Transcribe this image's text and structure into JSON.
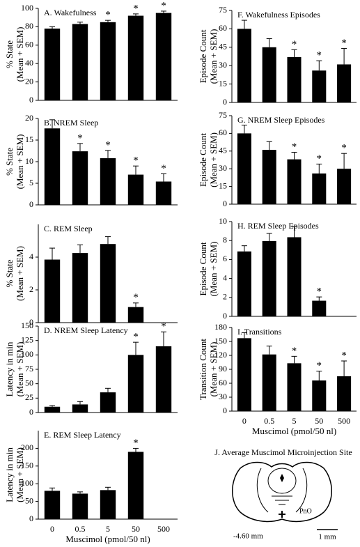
{
  "chart_data": [
    {
      "type": "bar",
      "title": "A. Wakefulness",
      "y_label": [
        "% State",
        "(Mean + SEM)"
      ],
      "categories": [
        "0",
        "0.5",
        "5",
        "50",
        "500"
      ],
      "values": [
        78,
        83,
        85,
        92,
        95
      ],
      "errors": [
        2,
        2,
        2,
        2,
        2
      ],
      "significant": [
        false,
        false,
        true,
        true,
        true
      ],
      "marker": "*",
      "color": "#000000",
      "ylim": [
        0,
        100
      ],
      "yticks": [
        0,
        20,
        40,
        60,
        80,
        100
      ]
    },
    {
      "type": "bar",
      "title": "B. NREM Sleep",
      "y_label": [
        "% State",
        "(Mean + SEM)"
      ],
      "categories": [
        "0",
        "0.5",
        "5",
        "50",
        "500"
      ],
      "values": [
        17.7,
        12.4,
        10.8,
        7.0,
        5.4
      ],
      "errors": [
        2.0,
        1.8,
        1.8,
        2.0,
        1.8
      ],
      "significant": [
        false,
        true,
        true,
        true,
        true
      ],
      "marker": "*",
      "color": "#000000",
      "ylim": [
        0,
        20
      ],
      "yticks": [
        0,
        5,
        10,
        15,
        20
      ]
    },
    {
      "type": "bar",
      "title": "C. REM Sleep",
      "y_label": [
        "% State",
        "(Mean + SEM)"
      ],
      "categories": [
        "0",
        "0.5",
        "5",
        "50",
        "500"
      ],
      "values": [
        3.85,
        4.25,
        4.8,
        0.95,
        null
      ],
      "errors": [
        0.7,
        0.5,
        0.45,
        0.25,
        null
      ],
      "significant": [
        false,
        false,
        false,
        true,
        false
      ],
      "marker": "*",
      "color": "#000000",
      "ylim": [
        0,
        6
      ],
      "yticks": [
        0,
        2,
        4
      ]
    },
    {
      "type": "bar",
      "title": "D. NREM Sleep Latency",
      "y_label": [
        "Latency in min",
        "(Mean + SEM)"
      ],
      "categories": [
        "0",
        "0.5",
        "5",
        "50",
        "500"
      ],
      "values": [
        10,
        14,
        35,
        100,
        115
      ],
      "errors": [
        2,
        5,
        7,
        22,
        25
      ],
      "significant": [
        false,
        false,
        false,
        true,
        true
      ],
      "marker": "*",
      "color": "#000000",
      "ylim": [
        0,
        150
      ],
      "yticks": [
        0,
        25,
        50,
        75,
        100,
        125,
        150
      ]
    },
    {
      "type": "bar",
      "title": "E. REM Sleep Latency",
      "y_label": [
        "Latency in min",
        "(Mean + SEM)"
      ],
      "x_label": "Muscimol (pmol/50 nl)",
      "categories": [
        "0",
        "0.5",
        "5",
        "50",
        "500"
      ],
      "values": [
        80,
        72,
        82,
        190,
        null
      ],
      "errors": [
        8,
        5,
        8,
        10,
        null
      ],
      "significant": [
        false,
        false,
        false,
        true,
        false
      ],
      "marker": "*",
      "color": "#000000",
      "ylim": [
        0,
        250
      ],
      "yticks": [
        0,
        50,
        100,
        150,
        200
      ]
    },
    {
      "type": "bar",
      "title": "F. Wakefulness Episodes",
      "y_label": [
        "Episode Count",
        "(Mean + SEM)"
      ],
      "categories": [
        "0",
        "0.5",
        "5",
        "50",
        "500"
      ],
      "values": [
        60,
        45,
        37,
        26,
        31
      ],
      "errors": [
        7,
        7,
        6,
        8,
        13
      ],
      "significant": [
        false,
        false,
        true,
        true,
        true
      ],
      "marker": "*",
      "color": "#000000",
      "ylim": [
        0,
        75
      ],
      "yticks": [
        0,
        15,
        30,
        45,
        60,
        75
      ]
    },
    {
      "type": "bar",
      "title": "G. NREM Sleep Episodes",
      "y_label": [
        "Episode Count",
        "(Mean + SEM)"
      ],
      "categories": [
        "0",
        "0.5",
        "5",
        "50",
        "500"
      ],
      "values": [
        60,
        46,
        38,
        26,
        30
      ],
      "errors": [
        7,
        7,
        6,
        8,
        13
      ],
      "significant": [
        false,
        false,
        true,
        true,
        true
      ],
      "marker": "*",
      "color": "#000000",
      "ylim": [
        0,
        75
      ],
      "yticks": [
        0,
        15,
        30,
        45,
        60,
        75
      ]
    },
    {
      "type": "bar",
      "title": "H. REM Sleep Episodes",
      "y_label": [
        "Episode Count",
        "(Mean + SEM)"
      ],
      "categories": [
        "0",
        "0.5",
        "5",
        "50",
        "500"
      ],
      "values": [
        6.85,
        7.95,
        8.35,
        1.65,
        null
      ],
      "errors": [
        0.6,
        0.8,
        1.1,
        0.4,
        null
      ],
      "significant": [
        false,
        false,
        false,
        true,
        false
      ],
      "marker": "*",
      "color": "#000000",
      "ylim": [
        0,
        10
      ],
      "yticks": [
        0,
        2,
        4,
        6,
        8,
        10
      ]
    },
    {
      "type": "bar",
      "title": "I. Transitions",
      "y_label": [
        "Transition Count",
        "(Mean + SEM)"
      ],
      "x_label": "Muscimol (pmol/50 nl)",
      "categories": [
        "0",
        "0.5",
        "5",
        "50",
        "500"
      ],
      "values": [
        157,
        122,
        103,
        66,
        75
      ],
      "errors": [
        12,
        18,
        15,
        20,
        33
      ],
      "significant": [
        false,
        false,
        true,
        true,
        true
      ],
      "marker": "*",
      "color": "#000000",
      "ylim": [
        0,
        180
      ],
      "yticks": [
        0,
        30,
        60,
        90,
        120,
        150,
        180
      ]
    }
  ],
  "diagram": {
    "title": "J. Average Muscimol Microinjection Site",
    "region_label": "PnO",
    "level_label": "-4.60 mm",
    "scale_label": "1 mm"
  }
}
